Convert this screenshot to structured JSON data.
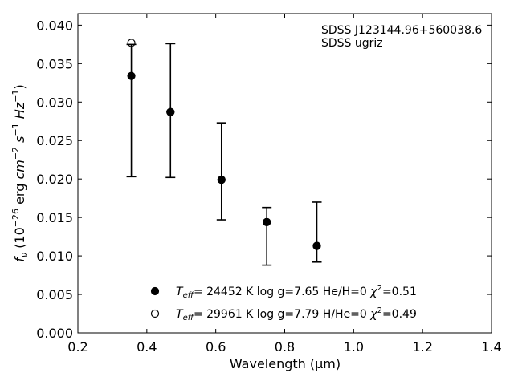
{
  "chart_data": {
    "type": "scatter",
    "title": "",
    "xlabel": "Wavelength (μm)",
    "ylabel": "f_ν (10^-26 erg cm^-2 s^-1 Hz^-1)",
    "xlim": [
      0.2,
      1.4
    ],
    "ylim": [
      0.0,
      0.0415
    ],
    "x_ticks": [
      0.2,
      0.4,
      0.6,
      0.8,
      1.0,
      1.2,
      1.4
    ],
    "x_tick_labels": [
      "0.2",
      "0.4",
      "0.6",
      "0.8",
      "1.0",
      "1.2",
      "1.4"
    ],
    "y_ticks": [
      0.0,
      0.005,
      0.01,
      0.015,
      0.02,
      0.025,
      0.03,
      0.035,
      0.04
    ],
    "y_tick_labels": [
      "0.000",
      "0.005",
      "0.010",
      "0.015",
      "0.020",
      "0.025",
      "0.030",
      "0.035",
      "0.040"
    ],
    "grid": false,
    "annotation": [
      "SDSS J123144.96+560038.6",
      "SDSS ugriz"
    ],
    "observed": {
      "x": [
        0.3551,
        0.4686,
        0.6166,
        0.748,
        0.8932
      ],
      "y_low": [
        0.0203,
        0.0202,
        0.0147,
        0.0088,
        0.0092
      ],
      "y_high": [
        0.0375,
        0.0376,
        0.0273,
        0.0163,
        0.017
      ]
    },
    "series": [
      {
        "legend": {
          "teff": "= 24452 K",
          "logg": "log g=7.65",
          "comp": "He/H=0",
          "chi2": "=0.51"
        },
        "marker": "filled-circle",
        "x": [
          0.3551,
          0.4686,
          0.6166,
          0.748,
          0.8932
        ],
        "y": [
          0.0334,
          0.0287,
          0.0199,
          0.0144,
          0.0113
        ]
      },
      {
        "legend": {
          "teff": "= 29961 K",
          "logg": "log g=7.79",
          "comp": "H/He=0",
          "chi2": "=0.49"
        },
        "marker": "open-circle",
        "x": [
          0.3551,
          0.4686,
          0.6166,
          0.748,
          0.8932
        ],
        "y": [
          0.0377,
          0.0287,
          0.0199,
          0.0144,
          0.0113
        ]
      }
    ],
    "legend_position": "lower-center"
  }
}
